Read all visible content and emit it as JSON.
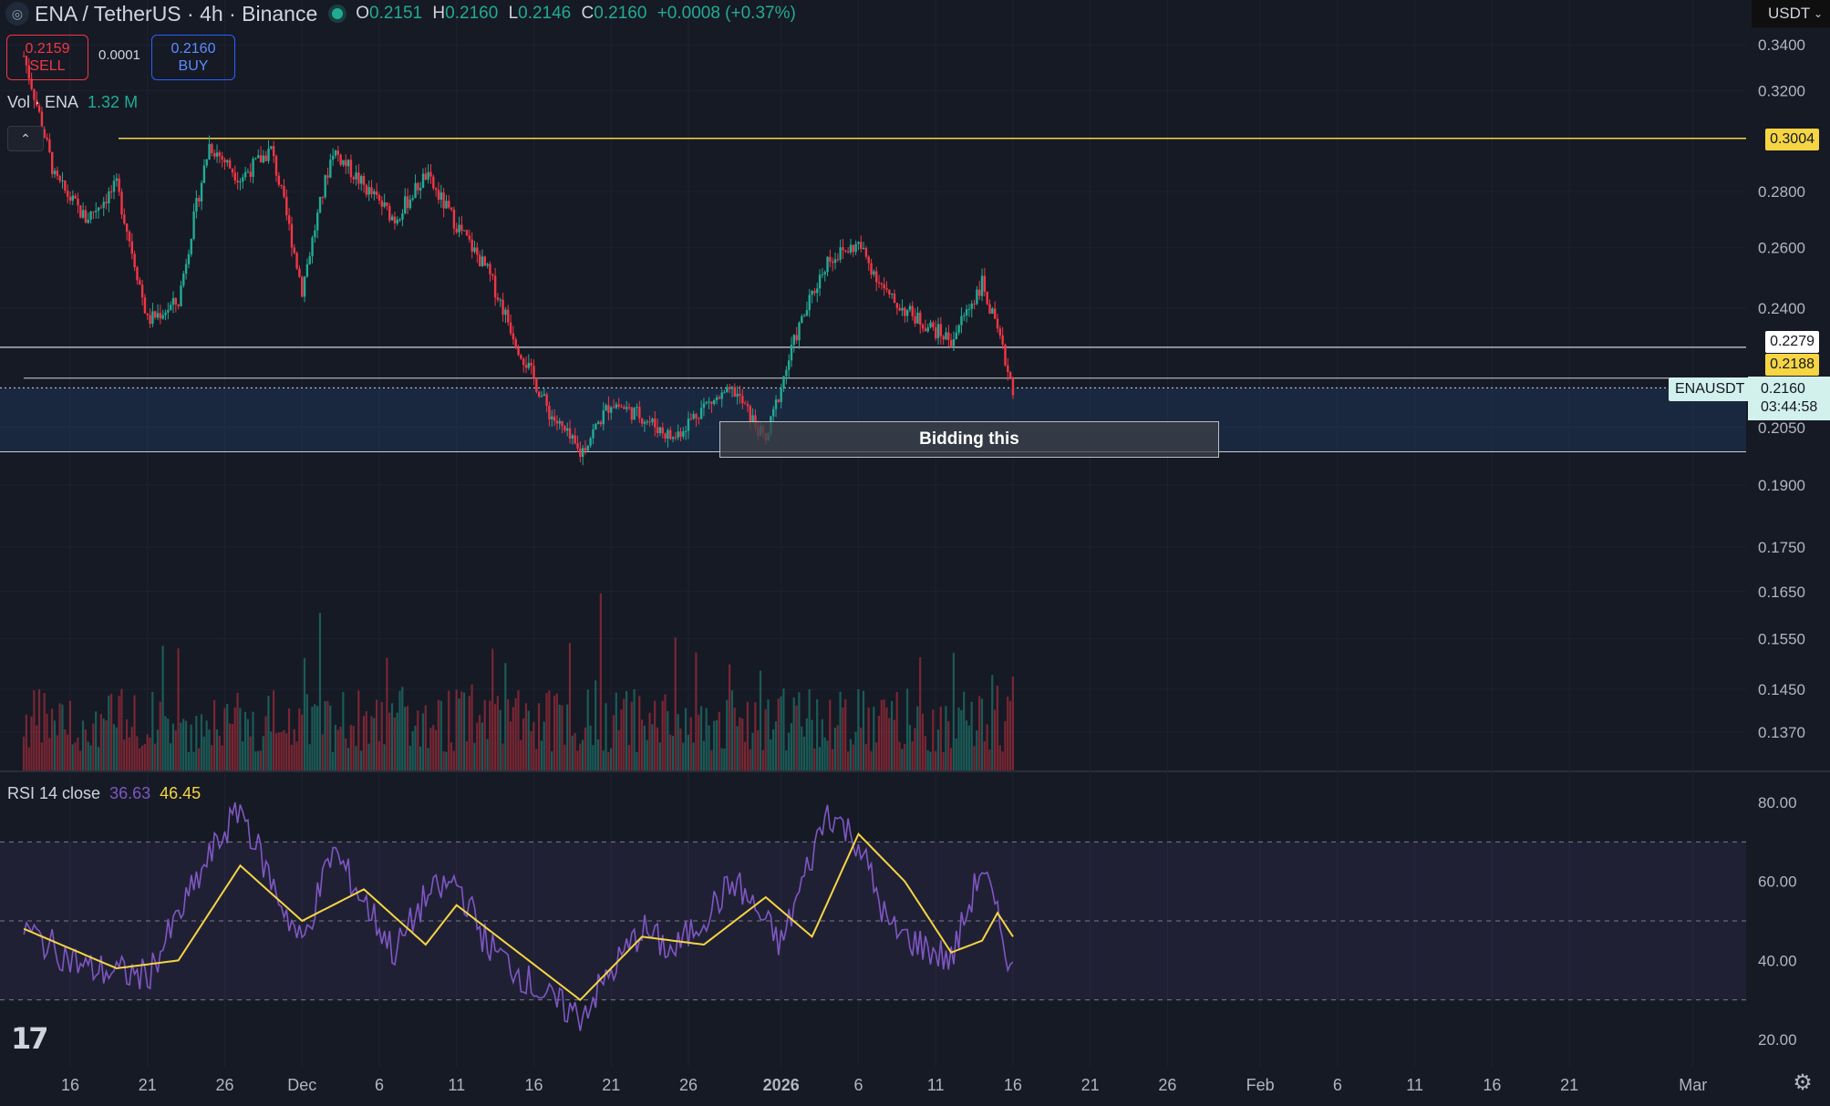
{
  "header": {
    "symbol_title": "ENA / TetherUS · 4h · Binance",
    "ohlc": {
      "o_key": "O",
      "o_val": "0.2151",
      "h_key": "H",
      "h_val": "0.2160",
      "l_key": "L",
      "l_val": "0.2146",
      "c_key": "C",
      "c_val": "0.2160",
      "change": "+0.0008 (+0.37%)"
    }
  },
  "trade": {
    "sell_price": "0.2159",
    "sell_label": "SELL",
    "spread": "0.0001",
    "buy_price": "0.2160",
    "buy_label": "BUY"
  },
  "volume_legend": {
    "name": "Vol · ENA",
    "value": "1.32 M"
  },
  "rsi_legend": {
    "name": "RSI 14 close",
    "rsi_value": "36.63",
    "ma_value": "46.45"
  },
  "currency_select": {
    "value": "USDT"
  },
  "annotation": {
    "text": "Bidding this"
  },
  "symbol_label": "ENAUSDT",
  "price_labels": {
    "resistance": "0.3004",
    "line_a": "0.2279",
    "line_b": "0.2188",
    "last_price": "0.2160",
    "countdown": "03:44:58"
  },
  "colors": {
    "up": "#22ab94",
    "down": "#f23645",
    "rsi": "#7e57c2",
    "rsi_ma": "#f5d543",
    "resistance_line": "#f5d543",
    "zone": "#1e3a5f"
  },
  "icons": [
    "ena-coin-icon",
    "live-status-icon",
    "chevron-up-icon",
    "chevron-down-icon",
    "tradingview-logo-icon",
    "settings-icon"
  ],
  "chart_data": {
    "type": "candlestick",
    "price_axis": {
      "scale": "log",
      "ticks": [
        "0.3400",
        "0.3200",
        "0.2800",
        "0.2600",
        "0.2400",
        "0.2050",
        "0.1900",
        "0.1750",
        "0.1650",
        "0.1550",
        "0.1450",
        "0.1370"
      ]
    },
    "x_axis": {
      "ticks": [
        "16",
        "21",
        "26",
        "Dec",
        "6",
        "11",
        "16",
        "21",
        "26",
        "2026",
        "6",
        "11",
        "16",
        "21",
        "26",
        "Feb",
        "6",
        "11",
        "16",
        "21",
        "Mar"
      ]
    },
    "rsi_axis": {
      "ticks": [
        "80.00",
        "60.00",
        "40.00",
        "20.00"
      ],
      "band": [
        30,
        70
      ],
      "middle": 50
    },
    "horizontal_lines": [
      0.3004,
      0.2279,
      0.2188
    ],
    "demand_zone": [
      0.1985,
      0.216
    ],
    "price_path": [
      [
        "Nov 13",
        0.335
      ],
      [
        "Nov 15",
        0.285
      ],
      [
        "Nov 17",
        0.27
      ],
      [
        "Nov 19",
        0.282
      ],
      [
        "Nov 21",
        0.236
      ],
      [
        "Nov 23",
        0.242
      ],
      [
        "Nov 25",
        0.298
      ],
      [
        "Nov 27",
        0.285
      ],
      [
        "Nov 29",
        0.296
      ],
      [
        "Dec 1",
        0.246
      ],
      [
        "Dec 3",
        0.296
      ],
      [
        "Dec 5",
        0.282
      ],
      [
        "Dec 7",
        0.27
      ],
      [
        "Dec 9",
        0.286
      ],
      [
        "Dec 11",
        0.268
      ],
      [
        "Dec 13",
        0.252
      ],
      [
        "Dec 15",
        0.228
      ],
      [
        "Dec 17",
        0.209
      ],
      [
        "Dec 19",
        0.198
      ],
      [
        "Dec 21",
        0.212
      ],
      [
        "Dec 23",
        0.208
      ],
      [
        "Dec 25",
        0.202
      ],
      [
        "Dec 27",
        0.211
      ],
      [
        "Dec 29",
        0.215
      ],
      [
        "Dec 31",
        0.201
      ],
      [
        "Jan 2",
        0.232
      ],
      [
        "Jan 4",
        0.256
      ],
      [
        "Jan 6",
        0.261
      ],
      [
        "Jan 8",
        0.243
      ],
      [
        "Jan 10",
        0.236
      ],
      [
        "Jan 12",
        0.23
      ],
      [
        "Jan 14",
        0.248
      ],
      [
        "Jan 16",
        0.216
      ]
    ],
    "rsi_path": [
      [
        "Nov 13",
        48
      ],
      [
        "Nov 17",
        38
      ],
      [
        "Nov 21",
        36
      ],
      [
        "Nov 25",
        66
      ],
      [
        "Nov 27",
        79
      ],
      [
        "Nov 29",
        60
      ],
      [
        "Dec 1",
        44
      ],
      [
        "Dec 3",
        68
      ],
      [
        "Dec 7",
        42
      ],
      [
        "Dec 9",
        56
      ],
      [
        "Dec 11",
        60
      ],
      [
        "Dec 13",
        44
      ],
      [
        "Dec 17",
        30
      ],
      [
        "Dec 19",
        26
      ],
      [
        "Dec 23",
        48
      ],
      [
        "Dec 25",
        42
      ],
      [
        "Dec 29",
        60
      ],
      [
        "Jan 1",
        44
      ],
      [
        "Jan 4",
        78
      ],
      [
        "Jan 6",
        70
      ],
      [
        "Jan 8",
        48
      ],
      [
        "Jan 10",
        44
      ],
      [
        "Jan 12",
        40
      ],
      [
        "Jan 14",
        64
      ],
      [
        "Jan 16",
        37
      ]
    ],
    "rsi_ma_path": [
      [
        "Nov 13",
        48
      ],
      [
        "Nov 19",
        38
      ],
      [
        "Nov 23",
        40
      ],
      [
        "Nov 27",
        64
      ],
      [
        "Dec 1",
        50
      ],
      [
        "Dec 5",
        58
      ],
      [
        "Dec 9",
        44
      ],
      [
        "Dec 11",
        54
      ],
      [
        "Dec 15",
        42
      ],
      [
        "Dec 19",
        30
      ],
      [
        "Dec 23",
        46
      ],
      [
        "Dec 27",
        44
      ],
      [
        "Dec 31",
        56
      ],
      [
        "Jan 3",
        46
      ],
      [
        "Jan 6",
        72
      ],
      [
        "Jan 9",
        60
      ],
      [
        "Jan 12",
        42
      ],
      [
        "Jan 14",
        45
      ],
      [
        "Jan 15",
        52
      ],
      [
        "Jan 16",
        46
      ]
    ]
  }
}
